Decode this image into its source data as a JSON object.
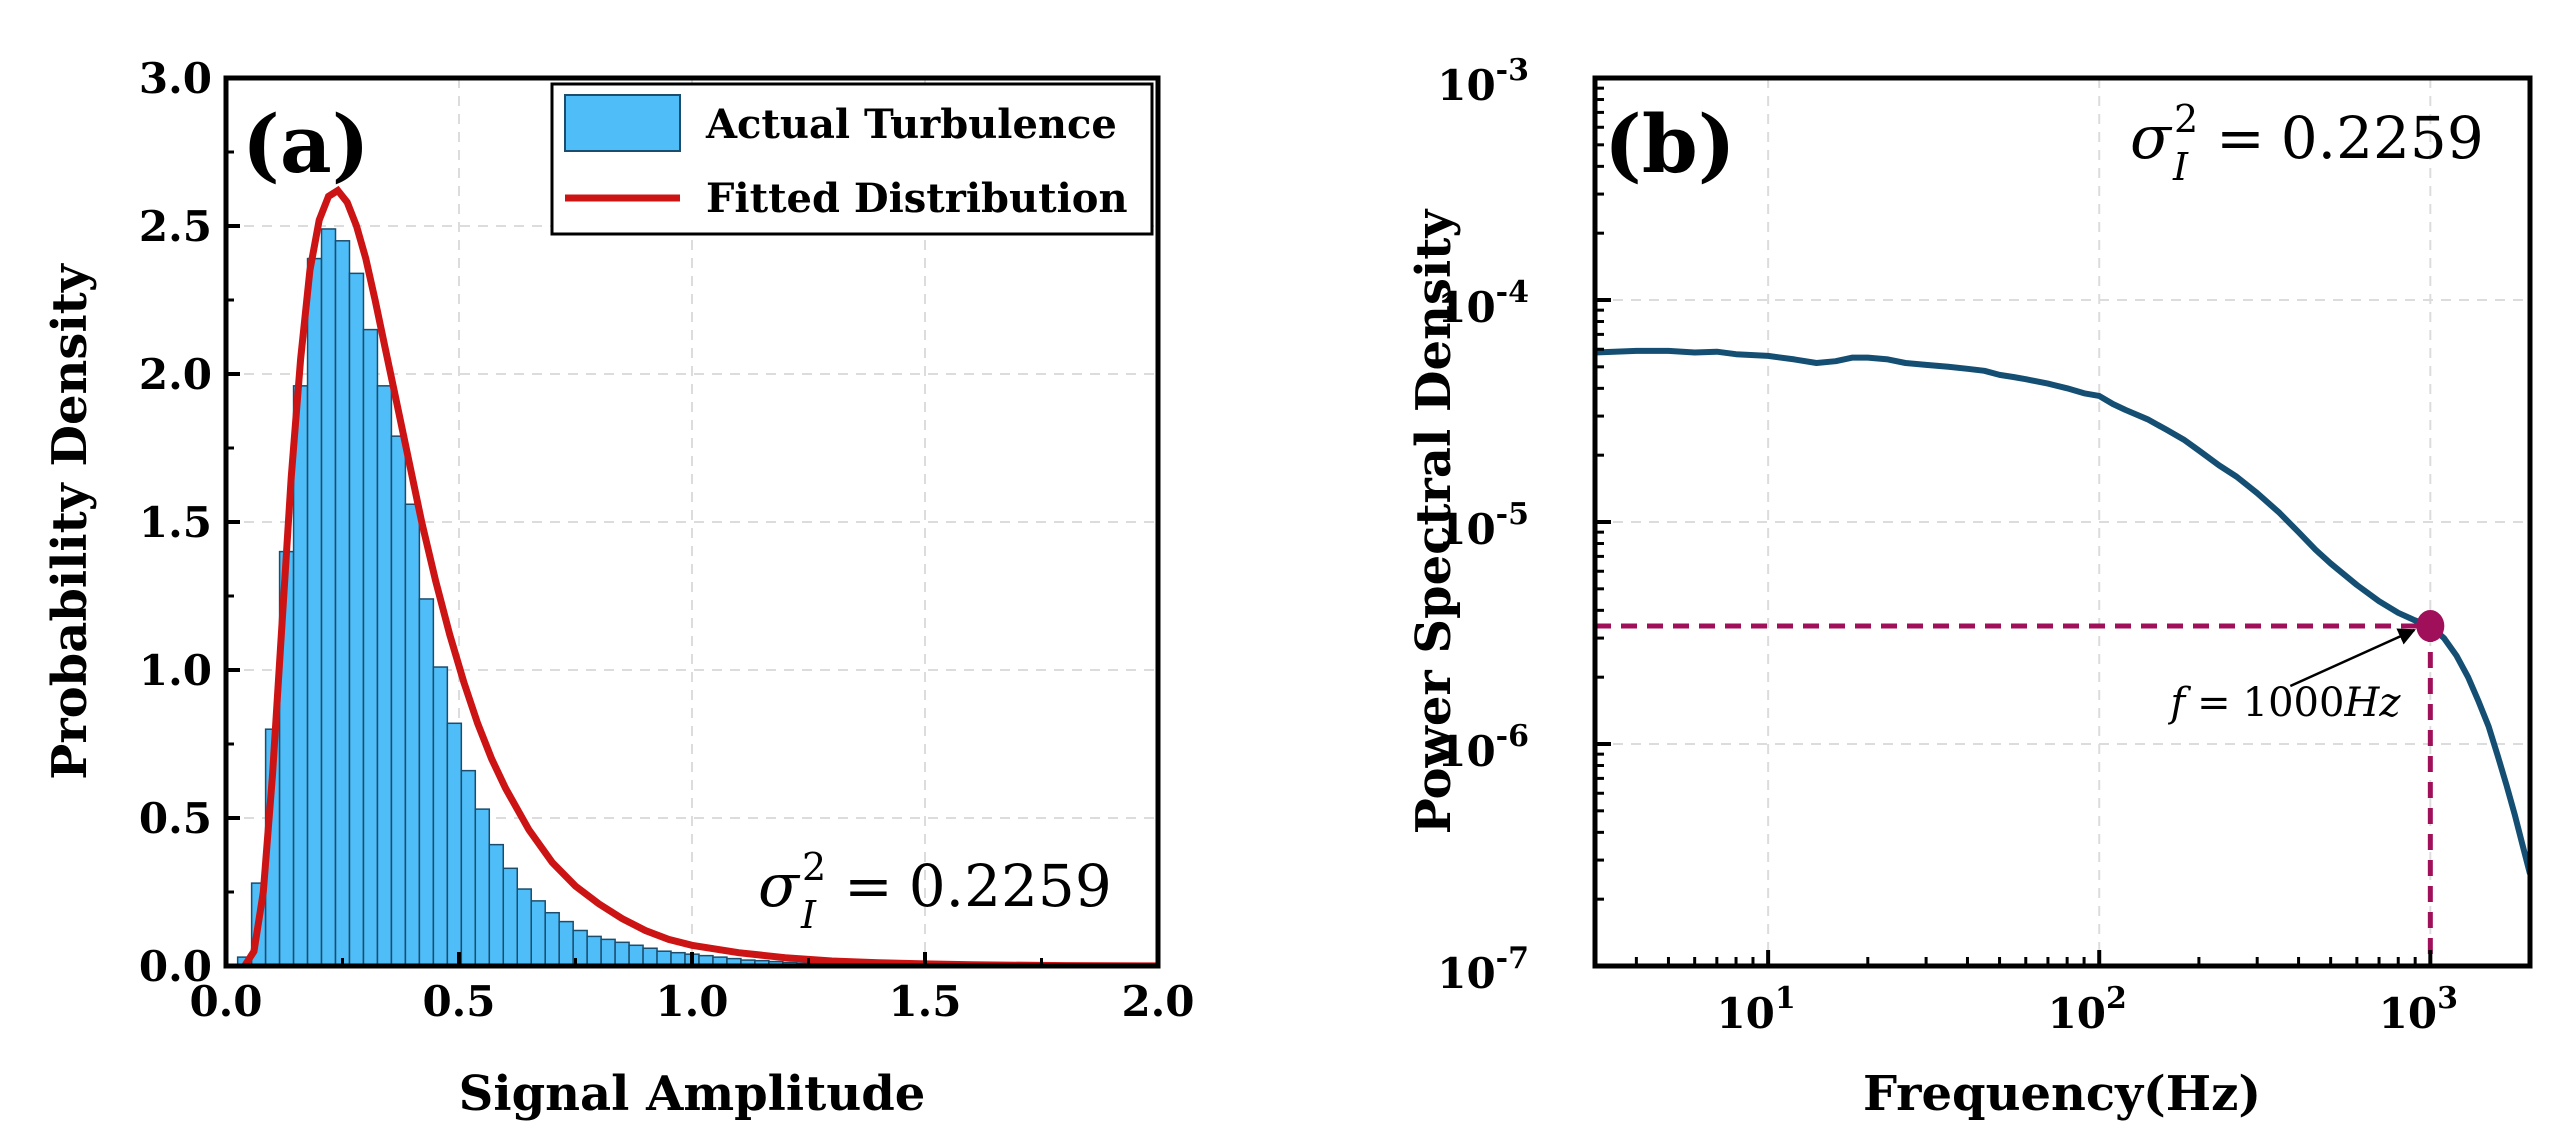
{
  "colors": {
    "bar_fill": "#4fbdf7",
    "bar_edge": "#1a4d6e",
    "fit_line": "#cc1414",
    "psd_line": "#144f73",
    "marker": "#a0105a",
    "grid": "#dcdcdc"
  },
  "chart_data": [
    {
      "type": "bar",
      "panel_label": "(a)",
      "xlabel": "Signal Amplitude",
      "ylabel": "Probability Density",
      "xlim": [
        0.0,
        2.0
      ],
      "ylim": [
        0.0,
        3.0
      ],
      "xticks": [
        "0.0",
        "0.5",
        "1.0",
        "1.5",
        "2.0"
      ],
      "xtick_values": [
        0.0,
        0.5,
        1.0,
        1.5,
        2.0
      ],
      "yticks": [
        "0.0",
        "0.5",
        "1.0",
        "1.5",
        "2.0",
        "2.5",
        "3.0"
      ],
      "ytick_values": [
        0.0,
        0.5,
        1.0,
        1.5,
        2.0,
        2.5,
        3.0
      ],
      "grid": true,
      "legend_position": "top-right",
      "annotation": {
        "sigma_text": "0.2259"
      },
      "bar_width": 0.03,
      "bars": {
        "x": [
          0.04,
          0.07,
          0.1,
          0.13,
          0.16,
          0.19,
          0.22,
          0.25,
          0.28,
          0.31,
          0.34,
          0.37,
          0.4,
          0.43,
          0.46,
          0.49,
          0.52,
          0.55,
          0.58,
          0.61,
          0.64,
          0.67,
          0.7,
          0.73,
          0.76,
          0.79,
          0.82,
          0.85,
          0.88,
          0.91,
          0.94,
          0.97,
          1.0,
          1.03,
          1.06,
          1.09,
          1.12,
          1.15,
          1.18,
          1.21,
          1.24,
          1.27,
          1.3,
          1.33,
          1.36,
          1.39,
          1.42,
          1.45,
          1.48
        ],
        "values": [
          0.03,
          0.28,
          0.8,
          1.4,
          1.96,
          2.39,
          2.49,
          2.45,
          2.34,
          2.15,
          1.96,
          1.79,
          1.56,
          1.24,
          1.01,
          0.82,
          0.66,
          0.53,
          0.41,
          0.33,
          0.26,
          0.22,
          0.18,
          0.15,
          0.12,
          0.1,
          0.09,
          0.08,
          0.07,
          0.06,
          0.05,
          0.045,
          0.04,
          0.035,
          0.03,
          0.025,
          0.02,
          0.018,
          0.015,
          0.012,
          0.01,
          0.009,
          0.008,
          0.007,
          0.006,
          0.005,
          0.004,
          0.003,
          0.002
        ],
        "name": "Actual Turbulence"
      },
      "fit": {
        "name": "Fitted Distribution",
        "x": [
          0.04,
          0.06,
          0.08,
          0.1,
          0.12,
          0.14,
          0.16,
          0.18,
          0.2,
          0.22,
          0.24,
          0.26,
          0.28,
          0.3,
          0.32,
          0.34,
          0.36,
          0.38,
          0.4,
          0.42,
          0.45,
          0.48,
          0.51,
          0.54,
          0.57,
          0.6,
          0.65,
          0.7,
          0.75,
          0.8,
          0.85,
          0.9,
          0.95,
          1.0,
          1.1,
          1.2,
          1.3,
          1.4,
          1.5,
          1.6,
          1.8,
          2.0
        ],
        "y": [
          0.0,
          0.05,
          0.25,
          0.65,
          1.15,
          1.65,
          2.05,
          2.35,
          2.52,
          2.6,
          2.62,
          2.58,
          2.5,
          2.39,
          2.25,
          2.1,
          1.95,
          1.8,
          1.65,
          1.5,
          1.3,
          1.12,
          0.96,
          0.82,
          0.7,
          0.6,
          0.46,
          0.35,
          0.27,
          0.21,
          0.16,
          0.12,
          0.09,
          0.07,
          0.045,
          0.028,
          0.017,
          0.011,
          0.007,
          0.004,
          0.0015,
          0.0005
        ]
      }
    },
    {
      "type": "line",
      "panel_label": "(b)",
      "xlabel": "Frequency(Hz)",
      "ylabel": "Power Spectral Density",
      "xscale": "log",
      "yscale": "log",
      "xlim": [
        3,
        2000
      ],
      "ylim": [
        1e-07,
        0.001
      ],
      "xticks": [
        {
          "value": 10,
          "base": "10",
          "exp": "1"
        },
        {
          "value": 100,
          "base": "10",
          "exp": "2"
        },
        {
          "value": 1000,
          "base": "10",
          "exp": "3"
        }
      ],
      "yticks": [
        {
          "value": 0.001,
          "base": "10",
          "exp": "-3"
        },
        {
          "value": 0.0001,
          "base": "10",
          "exp": "-4"
        },
        {
          "value": 1e-05,
          "base": "10",
          "exp": "-5"
        },
        {
          "value": 1e-06,
          "base": "10",
          "exp": "-6"
        },
        {
          "value": 1e-07,
          "base": "10",
          "exp": "-7"
        }
      ],
      "grid": true,
      "annotation": {
        "sigma_text": "0.2259"
      },
      "series": [
        {
          "x": [
            3,
            4,
            5,
            6,
            7,
            8,
            10,
            12,
            14,
            16,
            18,
            20,
            23,
            26,
            30,
            35,
            40,
            45,
            50,
            55,
            60,
            70,
            80,
            90,
            100,
            110,
            120,
            140,
            160,
            180,
            200,
            230,
            260,
            300,
            350,
            400,
            450,
            500,
            600,
            700,
            800,
            900,
            1000,
            1100,
            1200,
            1300,
            1400,
            1500,
            1600,
            1700,
            1800,
            1900,
            2000
          ],
          "y": [
            5.8e-05,
            5.9e-05,
            5.9e-05,
            5.8e-05,
            5.85e-05,
            5.7e-05,
            5.6e-05,
            5.4e-05,
            5.2e-05,
            5.3e-05,
            5.5e-05,
            5.5e-05,
            5.4e-05,
            5.2e-05,
            5.1e-05,
            5e-05,
            4.9e-05,
            4.8e-05,
            4.6e-05,
            4.5e-05,
            4.4e-05,
            4.2e-05,
            4e-05,
            3.8e-05,
            3.7e-05,
            3.4e-05,
            3.2e-05,
            2.9e-05,
            2.6e-05,
            2.35e-05,
            2.1e-05,
            1.8e-05,
            1.6e-05,
            1.35e-05,
            1.1e-05,
            9e-06,
            7.5e-06,
            6.5e-06,
            5.2e-06,
            4.4e-06,
            3.9e-06,
            3.6e-06,
            3.4e-06,
            3e-06,
            2.5e-06,
            2e-06,
            1.55e-06,
            1.2e-06,
            8.8e-07,
            6.5e-07,
            4.8e-07,
            3.5e-07,
            2.6e-07
          ]
        }
      ],
      "marker_point": {
        "x": 1000,
        "y": 3.4e-06
      },
      "marker_label": {
        "f": "f",
        "equals": "=",
        "value": "1000",
        "unit": "Hz"
      }
    }
  ]
}
